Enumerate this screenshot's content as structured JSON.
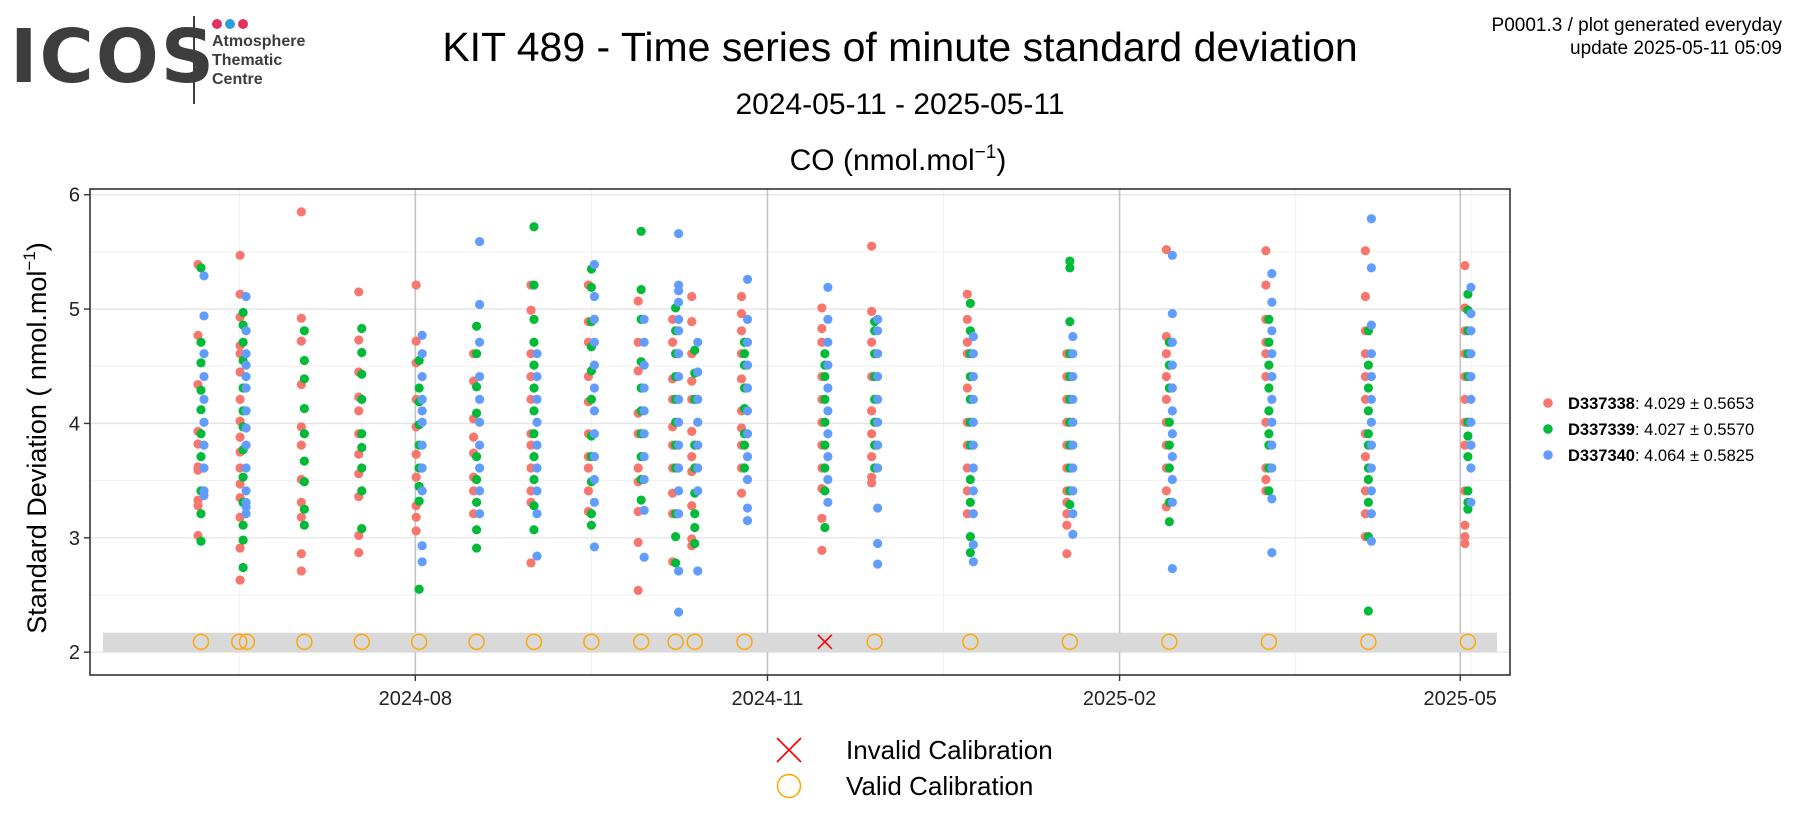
{
  "header": {
    "title": "KIT 489 - Time series of minute standard deviation",
    "subtitle": "2024-05-11 - 2025-05-11",
    "meta_line1": "P0001.3 / plot generated everyday",
    "meta_line2": "update  2025-05-11 05:09"
  },
  "logo": {
    "word": "ICOS",
    "line1": "Atmosphere",
    "line2": "Thematic",
    "line3": "Centre",
    "dot_colors": [
      "#e3325f",
      "#2a9fd8",
      "#e3325f"
    ]
  },
  "chart_data": {
    "type": "scatter",
    "title": "CO (nmol.mol",
    "title_superscript": "−1",
    "title_end": ")",
    "ylabel": "Standard Deviation ( nmol.mol",
    "ylabel_superscript": "−1",
    "ylabel_end": ")",
    "xlabel": "",
    "ylim": [
      1.8,
      6.05
    ],
    "xlim": [
      "2024-05-08",
      "2025-05-14"
    ],
    "yticks": [
      2,
      3,
      4,
      5,
      6
    ],
    "xticks": [
      {
        "date": "2024-08-01",
        "label": "2024-08"
      },
      {
        "date": "2024-11-01",
        "label": "2024-11"
      },
      {
        "date": "2025-02-01",
        "label": "2025-02"
      },
      {
        "date": "2025-05-01",
        "label": "2025-05"
      }
    ],
    "calibration_band": [
      2.0,
      2.17
    ],
    "grid": true,
    "legend_position": "right",
    "series": [
      {
        "name": "D337338",
        "stat": ": 4.029",
        "sd": "0.5653",
        "color": "#f8766d",
        "points": [
          [
            "2024-06-06",
            [
              5.39,
              4.77,
              4.34,
              3.93,
              3.82,
              3.62,
              3.59,
              3.33,
              3.28,
              3.02
            ]
          ],
          [
            "2024-06-17",
            [
              5.47,
              5.13,
              4.93,
              4.68,
              4.61,
              4.45,
              4.21,
              4.02,
              3.88,
              3.75,
              3.61,
              3.47,
              3.35,
              3.18,
              2.91,
              2.63
            ]
          ],
          [
            "2024-07-03",
            [
              5.85,
              4.92,
              4.72,
              4.34,
              3.97,
              3.81,
              3.51,
              3.31,
              3.18,
              2.86,
              2.71
            ]
          ],
          [
            "2024-07-18",
            [
              5.15,
              4.73,
              4.45,
              4.23,
              4.11,
              3.91,
              3.73,
              3.56,
              3.36,
              3.02,
              2.87
            ]
          ],
          [
            "2024-08-02",
            [
              5.21,
              4.72,
              4.53,
              4.21,
              3.97,
              3.73,
              3.53,
              3.28,
              3.18,
              3.06
            ]
          ],
          [
            "2024-08-17",
            [
              4.61,
              4.37,
              4.04,
              3.88,
              3.74,
              3.53,
              3.41,
              3.21
            ]
          ],
          [
            "2024-09-01",
            [
              5.21,
              4.99,
              4.61,
              4.41,
              4.21,
              3.91,
              3.81,
              3.61,
              3.41,
              3.31,
              2.78
            ]
          ],
          [
            "2024-09-16",
            [
              5.21,
              4.89,
              4.71,
              4.41,
              4.19,
              3.91,
              3.71,
              3.61,
              3.41,
              3.23
            ]
          ],
          [
            "2024-09-29",
            [
              5.07,
              4.71,
              4.46,
              4.09,
              3.91,
              3.61,
              3.49,
              3.23,
              2.96,
              2.54
            ]
          ],
          [
            "2024-10-08",
            [
              4.91,
              4.71,
              4.39,
              4.21,
              3.97,
              3.81,
              3.61,
              3.39,
              3.21,
              2.79
            ]
          ],
          [
            "2024-10-13",
            [
              5.11,
              4.89,
              4.61,
              4.37,
              4.21,
              3.93,
              3.71,
              3.58,
              3.28,
              2.99,
              2.93
            ]
          ],
          [
            "2024-10-26",
            [
              5.11,
              4.96,
              4.81,
              4.61,
              4.39,
              4.11,
              3.96,
              3.81,
              3.61,
              3.39
            ]
          ],
          [
            "2024-11-16",
            [
              5.01,
              4.83,
              4.71,
              4.41,
              4.21,
              4.01,
              3.81,
              3.61,
              3.43,
              3.17,
              2.89
            ]
          ],
          [
            "2024-11-29",
            [
              5.55,
              4.98,
              4.71,
              4.41,
              4.11,
              3.91,
              3.71,
              3.53,
              3.48
            ]
          ],
          [
            "2024-12-24",
            [
              5.13,
              4.91,
              4.71,
              4.61,
              4.31,
              4.01,
              3.81,
              3.61,
              3.41,
              3.21
            ]
          ],
          [
            "2025-01-19",
            [
              4.61,
              4.41,
              4.21,
              4.01,
              3.81,
              3.61,
              3.41,
              3.31,
              3.21,
              3.11,
              2.86
            ]
          ],
          [
            "2025-02-14",
            [
              5.52,
              4.76,
              4.61,
              4.41,
              4.21,
              4.01,
              3.81,
              3.61,
              3.41,
              3.27
            ]
          ],
          [
            "2025-03-12",
            [
              5.51,
              5.21,
              4.91,
              4.71,
              4.61,
              4.41,
              4.01,
              3.61,
              3.51,
              3.41
            ]
          ],
          [
            "2025-04-07",
            [
              5.51,
              5.11,
              4.81,
              4.61,
              4.41,
              4.21,
              3.91,
              3.71,
              3.41,
              3.21,
              3.01
            ]
          ],
          [
            "2025-05-03",
            [
              5.38,
              5.01,
              4.81,
              4.61,
              4.41,
              4.21,
              4.01,
              3.81,
              3.41,
              3.11,
              3.01,
              2.95
            ]
          ]
        ]
      },
      {
        "name": "D337339",
        "stat": ": 4.027",
        "sd": "0.5570",
        "color": "#00ba38",
        "points": [
          [
            "2024-06-06",
            [
              5.36,
              4.71,
              4.53,
              4.29,
              4.12,
              3.91,
              3.71,
              3.41,
              3.21,
              2.97
            ]
          ],
          [
            "2024-06-17",
            [
              4.97,
              4.86,
              4.71,
              4.55,
              4.31,
              4.11,
              3.97,
              3.77,
              3.53,
              3.31,
              3.11,
              2.98,
              2.74
            ]
          ],
          [
            "2024-07-03",
            [
              4.81,
              4.55,
              4.39,
              4.13,
              3.91,
              3.67,
              3.49,
              3.25,
              3.11
            ]
          ],
          [
            "2024-07-18",
            [
              4.83,
              4.62,
              4.43,
              4.21,
              3.91,
              3.79,
              3.61,
              3.41,
              3.08
            ]
          ],
          [
            "2024-08-02",
            [
              4.55,
              4.31,
              4.19,
              3.99,
              3.81,
              3.61,
              3.45,
              3.32,
              2.55
            ]
          ],
          [
            "2024-08-17",
            [
              4.85,
              4.61,
              4.32,
              4.09,
              3.71,
              3.51,
              3.31,
              3.07,
              2.91
            ]
          ],
          [
            "2024-09-01",
            [
              5.72,
              5.21,
              4.91,
              4.71,
              4.51,
              4.31,
              4.11,
              3.91,
              3.71,
              3.51,
              3.28,
              3.07
            ]
          ],
          [
            "2024-09-16",
            [
              5.35,
              5.19,
              4.89,
              4.67,
              4.46,
              4.21,
              3.89,
              3.71,
              3.49,
              3.21,
              3.11
            ]
          ],
          [
            "2024-09-29",
            [
              5.68,
              5.17,
              4.91,
              4.54,
              4.31,
              4.11,
              3.91,
              3.71,
              3.51,
              3.33
            ]
          ],
          [
            "2024-10-08",
            [
              5.01,
              4.81,
              4.61,
              4.41,
              4.21,
              4.01,
              3.81,
              3.61,
              3.21,
              3.01,
              2.78
            ]
          ],
          [
            "2024-10-13",
            [
              4.64,
              4.44,
              4.21,
              3.81,
              3.61,
              3.39,
              3.21,
              3.09,
              2.95
            ]
          ],
          [
            "2024-10-26",
            [
              4.71,
              4.61,
              4.51,
              4.31,
              4.13,
              3.91,
              3.81,
              3.61
            ]
          ],
          [
            "2024-11-16",
            [
              4.61,
              4.51,
              4.41,
              4.21,
              4.01,
              3.81,
              3.61,
              3.41,
              3.09
            ]
          ],
          [
            "2024-11-29",
            [
              4.89,
              4.81,
              4.61,
              4.41,
              4.21,
              4.01,
              3.81,
              3.61
            ]
          ],
          [
            "2024-12-24",
            [
              5.05,
              4.81,
              4.61,
              4.41,
              4.21,
              4.01,
              3.81,
              3.51,
              3.31,
              3.01,
              2.87
            ]
          ],
          [
            "2025-01-19",
            [
              5.42,
              5.36,
              4.89,
              4.61,
              4.41,
              4.21,
              4.01,
              3.81,
              3.61,
              3.41,
              3.29
            ]
          ],
          [
            "2025-02-14",
            [
              4.71,
              4.51,
              4.31,
              4.01,
              3.81,
              3.61,
              3.31,
              3.14
            ]
          ],
          [
            "2025-03-12",
            [
              4.91,
              4.71,
              4.51,
              4.31,
              4.11,
              3.91,
              3.81,
              3.61,
              3.41
            ]
          ],
          [
            "2025-04-07",
            [
              4.81,
              4.51,
              4.31,
              4.11,
              3.91,
              3.81,
              3.61,
              3.51,
              3.31,
              3.01,
              2.36
            ]
          ],
          [
            "2025-05-03",
            [
              5.13,
              4.99,
              4.81,
              4.61,
              4.41,
              4.01,
              3.89,
              3.71,
              3.41,
              3.31,
              3.25
            ]
          ]
        ]
      },
      {
        "name": "D337340",
        "stat": ": 4.064",
        "sd": "0.5825",
        "color": "#619cff",
        "points": [
          [
            "2024-06-06",
            [
              5.29,
              4.94,
              4.61,
              4.41,
              4.21,
              4.01,
              3.81,
              3.61,
              3.41,
              3.37
            ]
          ],
          [
            "2024-06-17",
            [
              5.11,
              4.81,
              4.61,
              4.51,
              4.41,
              4.31,
              4.11,
              3.96,
              3.81,
              3.61,
              3.41,
              3.31,
              3.27,
              3.21
            ]
          ],
          [
            "2024-08-02",
            [
              4.77,
              4.61,
              4.41,
              4.21,
              4.11,
              4.01,
              3.81,
              3.61,
              3.41,
              2.93,
              2.79
            ]
          ],
          [
            "2024-08-17",
            [
              5.59,
              5.04,
              4.71,
              4.41,
              4.21,
              4.01,
              3.81,
              3.61,
              3.41,
              3.21
            ]
          ],
          [
            "2024-09-01",
            [
              4.61,
              4.41,
              4.21,
              4.01,
              3.81,
              3.61,
              3.41,
              3.21,
              2.84
            ]
          ],
          [
            "2024-09-16",
            [
              5.39,
              5.11,
              4.91,
              4.71,
              4.51,
              4.31,
              4.11,
              3.91,
              3.71,
              3.51,
              3.31,
              2.92
            ]
          ],
          [
            "2024-09-29",
            [
              4.91,
              4.71,
              4.51,
              4.31,
              4.11,
              3.91,
              3.71,
              3.51,
              3.24,
              2.83
            ]
          ],
          [
            "2024-10-08",
            [
              5.66,
              5.21,
              5.16,
              5.06,
              4.91,
              4.81,
              4.61,
              4.41,
              4.21,
              4.01,
              3.81,
              3.61,
              3.41,
              3.21,
              2.71,
              2.35
            ]
          ],
          [
            "2024-10-13",
            [
              4.71,
              4.45,
              4.21,
              4.01,
              3.81,
              3.61,
              3.41,
              2.71
            ]
          ],
          [
            "2024-10-26",
            [
              5.26,
              4.91,
              4.71,
              4.51,
              4.31,
              4.11,
              3.91,
              3.71,
              3.51,
              3.26,
              3.15
            ]
          ],
          [
            "2024-11-16",
            [
              5.19,
              4.91,
              4.71,
              4.51,
              4.31,
              4.11,
              3.91,
              3.71,
              3.51,
              3.31
            ]
          ],
          [
            "2024-11-29",
            [
              4.91,
              4.81,
              4.61,
              4.41,
              4.21,
              4.01,
              3.81,
              3.61,
              3.26,
              2.95,
              2.77
            ]
          ],
          [
            "2024-12-24",
            [
              4.76,
              4.61,
              4.41,
              4.21,
              4.01,
              3.81,
              3.61,
              3.41,
              3.21,
              2.94,
              2.79
            ]
          ],
          [
            "2025-01-19",
            [
              4.76,
              4.61,
              4.41,
              4.21,
              4.01,
              3.81,
              3.61,
              3.41,
              3.21,
              3.03
            ]
          ],
          [
            "2025-02-14",
            [
              5.47,
              4.96,
              4.71,
              4.51,
              4.31,
              4.11,
              3.91,
              3.71,
              3.51,
              3.31,
              2.73
            ]
          ],
          [
            "2025-03-12",
            [
              5.31,
              5.06,
              4.81,
              4.61,
              4.41,
              4.21,
              4.01,
              3.81,
              3.61,
              3.34,
              2.87
            ]
          ],
          [
            "2025-04-07",
            [
              5.79,
              5.36,
              4.86,
              4.61,
              4.41,
              4.21,
              4.01,
              3.81,
              3.61,
              3.41,
              3.21,
              2.97
            ]
          ],
          [
            "2025-05-03",
            [
              5.19,
              4.96,
              4.81,
              4.61,
              4.41,
              4.21,
              4.01,
              3.81,
              3.61,
              3.31
            ]
          ]
        ]
      }
    ],
    "calibrations": {
      "valid_dates": [
        "2024-06-06",
        "2024-06-16",
        "2024-06-18",
        "2024-07-03",
        "2024-07-18",
        "2024-08-02",
        "2024-08-17",
        "2024-09-01",
        "2024-09-16",
        "2024-09-29",
        "2024-10-08",
        "2024-10-13",
        "2024-10-26",
        "2024-11-29",
        "2024-12-24",
        "2025-01-19",
        "2025-02-14",
        "2025-03-12",
        "2025-04-07",
        "2025-05-03"
      ],
      "invalid_dates": [
        "2024-11-16"
      ],
      "y": 2.09
    },
    "legend_bottom": [
      "Invalid Calibration",
      "Valid Calibration"
    ]
  }
}
